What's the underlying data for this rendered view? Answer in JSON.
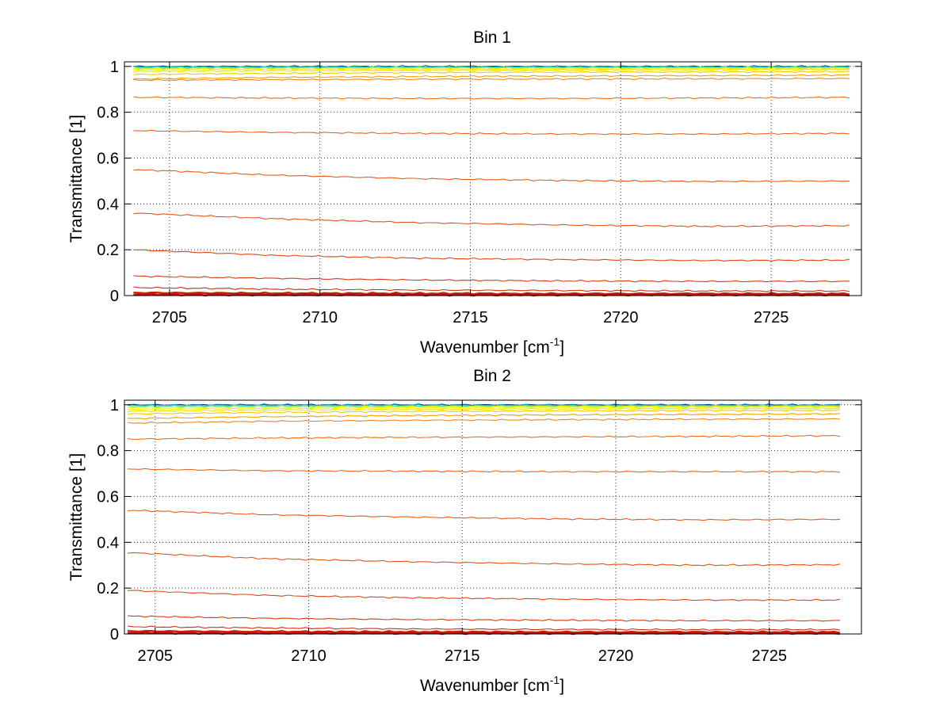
{
  "chart_data": [
    {
      "type": "line",
      "title": "Bin 1",
      "xlabel": "Wavenumber [cm",
      "xlabel_sup": "-1",
      "xlabel_suffix": "]",
      "ylabel": "Transmittance [1]",
      "xlim": [
        2703.5,
        2728.0
      ],
      "ylim": [
        0,
        1.02
      ],
      "xticks": [
        2705,
        2710,
        2715,
        2720,
        2725
      ],
      "xtick_labels": [
        "2705",
        "2710",
        "2715",
        "2720",
        "2725"
      ],
      "yticks": [
        0,
        0.2,
        0.4,
        0.6,
        0.8,
        1
      ],
      "ytick_labels": [
        "0",
        "0.2",
        "0.4",
        "0.6",
        "0.8",
        "1"
      ],
      "grid": true,
      "x_range": [
        2703.8,
        2727.6
      ],
      "series": [
        {
          "values": [
            1.0,
            1.0,
            1.0,
            1.0,
            1.0,
            1.0
          ],
          "color": "#0a3a8c"
        },
        {
          "values": [
            0.998,
            0.998,
            0.998,
            0.998,
            0.998,
            0.998
          ],
          "color": "#00c0d0"
        },
        {
          "values": [
            0.995,
            0.995,
            0.995,
            0.995,
            0.995,
            0.995
          ],
          "color": "#40d8a0"
        },
        {
          "values": [
            0.99,
            0.992,
            0.993,
            0.993,
            0.993,
            0.994
          ],
          "color": "#d8f000"
        },
        {
          "values": [
            0.985,
            0.987,
            0.988,
            0.989,
            0.99,
            0.99
          ],
          "color": "#f0f000"
        },
        {
          "values": [
            0.978,
            0.981,
            0.983,
            0.984,
            0.985,
            0.986
          ],
          "color": "#f4e000"
        },
        {
          "values": [
            0.965,
            0.97,
            0.973,
            0.975,
            0.976,
            0.977
          ],
          "color": "#f6c800"
        },
        {
          "values": [
            0.945,
            0.952,
            0.956,
            0.958,
            0.96,
            0.962
          ],
          "color": "#f0a000"
        },
        {
          "values": [
            0.94,
            0.942,
            0.944,
            0.945,
            0.946,
            0.947
          ],
          "color": "#e88820"
        },
        {
          "values": [
            0.865,
            0.862,
            0.86,
            0.86,
            0.862,
            0.865
          ],
          "color": "#e87020"
        },
        {
          "values": [
            0.72,
            0.712,
            0.708,
            0.705,
            0.705,
            0.708
          ],
          "color": "#e86420"
        },
        {
          "values": [
            0.55,
            0.525,
            0.51,
            0.502,
            0.498,
            0.5
          ],
          "color": "#e45c1e"
        },
        {
          "values": [
            0.36,
            0.335,
            0.318,
            0.308,
            0.302,
            0.305
          ],
          "color": "#e0541c"
        },
        {
          "values": [
            0.2,
            0.175,
            0.163,
            0.157,
            0.153,
            0.155
          ],
          "color": "#dc4818"
        },
        {
          "values": [
            0.085,
            0.075,
            0.068,
            0.064,
            0.062,
            0.062
          ],
          "color": "#d63c14"
        },
        {
          "values": [
            0.035,
            0.028,
            0.024,
            0.022,
            0.02,
            0.02
          ],
          "color": "#d03010"
        },
        {
          "values": [
            0.012,
            0.01,
            0.009,
            0.008,
            0.008,
            0.008
          ],
          "color": "#c8200c"
        },
        {
          "values": [
            0.004,
            0.003,
            0.003,
            0.003,
            0.003,
            0.003
          ],
          "color": "#c01008"
        }
      ]
    },
    {
      "type": "line",
      "title": "Bin 2",
      "xlabel": "Wavenumber [cm",
      "xlabel_sup": "-1",
      "xlabel_suffix": "]",
      "ylabel": "Transmittance [1]",
      "xlim": [
        2704.0,
        2728.0
      ],
      "ylim": [
        0,
        1.02
      ],
      "xticks": [
        2705,
        2710,
        2715,
        2720,
        2725
      ],
      "xtick_labels": [
        "2705",
        "2710",
        "2715",
        "2720",
        "2725"
      ],
      "yticks": [
        0,
        0.2,
        0.4,
        0.6,
        0.8,
        1
      ],
      "ytick_labels": [
        "0",
        "0.2",
        "0.4",
        "0.6",
        "0.8",
        "1"
      ],
      "grid": true,
      "x_range": [
        2704.1,
        2727.3
      ],
      "series": [
        {
          "values": [
            1.0,
            1.0,
            1.0,
            1.0,
            1.0,
            1.0
          ],
          "color": "#0a3a8c"
        },
        {
          "values": [
            0.998,
            0.998,
            0.998,
            0.998,
            0.998,
            0.998
          ],
          "color": "#00c0d0"
        },
        {
          "values": [
            0.994,
            0.995,
            0.995,
            0.995,
            0.995,
            0.995
          ],
          "color": "#40d8a0"
        },
        {
          "values": [
            0.988,
            0.99,
            0.992,
            0.993,
            0.993,
            0.994
          ],
          "color": "#d8f000"
        },
        {
          "values": [
            0.98,
            0.984,
            0.987,
            0.988,
            0.989,
            0.99
          ],
          "color": "#f0f000"
        },
        {
          "values": [
            0.972,
            0.977,
            0.98,
            0.982,
            0.983,
            0.984
          ],
          "color": "#f4e000"
        },
        {
          "values": [
            0.96,
            0.967,
            0.971,
            0.973,
            0.975,
            0.976
          ],
          "color": "#f6c800"
        },
        {
          "values": [
            0.94,
            0.948,
            0.953,
            0.956,
            0.958,
            0.96
          ],
          "color": "#f0a000"
        },
        {
          "values": [
            0.92,
            0.928,
            0.932,
            0.935,
            0.937,
            0.938
          ],
          "color": "#e88820"
        },
        {
          "values": [
            0.85,
            0.855,
            0.858,
            0.86,
            0.862,
            0.865
          ],
          "color": "#e87020"
        },
        {
          "values": [
            0.72,
            0.712,
            0.71,
            0.708,
            0.708,
            0.708
          ],
          "color": "#e86420"
        },
        {
          "values": [
            0.54,
            0.52,
            0.51,
            0.502,
            0.498,
            0.5
          ],
          "color": "#e45c1e"
        },
        {
          "values": [
            0.355,
            0.328,
            0.315,
            0.306,
            0.3,
            0.302
          ],
          "color": "#e0541c"
        },
        {
          "values": [
            0.19,
            0.168,
            0.158,
            0.152,
            0.148,
            0.148
          ],
          "color": "#dc4818"
        },
        {
          "values": [
            0.078,
            0.068,
            0.063,
            0.06,
            0.058,
            0.058
          ],
          "color": "#d63c14"
        },
        {
          "values": [
            0.032,
            0.026,
            0.022,
            0.02,
            0.019,
            0.019
          ],
          "color": "#d03010"
        },
        {
          "values": [
            0.012,
            0.01,
            0.009,
            0.008,
            0.008,
            0.008
          ],
          "color": "#c8200c"
        },
        {
          "values": [
            0.004,
            0.003,
            0.003,
            0.003,
            0.003,
            0.003
          ],
          "color": "#c01008"
        }
      ]
    }
  ]
}
